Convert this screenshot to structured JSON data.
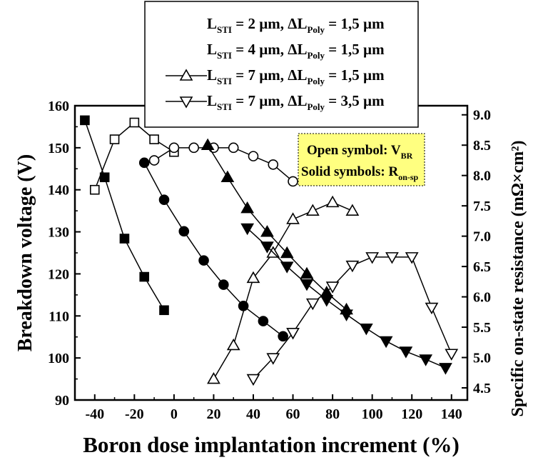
{
  "chart_data": {
    "type": "line",
    "title": "",
    "xlabel": "Boron dose implantation increment (%)",
    "ylabel_left": "Breakdown voltage (V)",
    "ylabel_right": "Specific on-state resistance (mΩ×cm²)",
    "xlim": [
      -50,
      148
    ],
    "ylim_left": [
      90,
      160
    ],
    "ylim_right": [
      4.3,
      9.15
    ],
    "x_ticks": [
      -40,
      -20,
      0,
      20,
      40,
      60,
      80,
      100,
      120,
      140
    ],
    "y_left_ticks": [
      90,
      100,
      110,
      120,
      130,
      140,
      150,
      160
    ],
    "y_right_ticks": [
      4.5,
      5.0,
      5.5,
      6.0,
      6.5,
      7.0,
      7.5,
      8.0,
      8.5,
      9.0
    ],
    "grid": false,
    "legend_placement": "top-center",
    "legend": [
      {
        "label": "L_STI = 2 µm, ΔL_Poly = 1,5 µm",
        "marker": "square",
        "main": "L",
        "sub1": "STI",
        "mid": " = 2 µm, ΔL",
        "sub2": "Poly",
        "tail": " = 1,5 µm"
      },
      {
        "label": "L_STI = 4 µm, ΔL_Poly = 1,5 µm",
        "marker": "circle",
        "main": "L",
        "sub1": "STI",
        "mid": " = 4 µm, ΔL",
        "sub2": "Poly",
        "tail": " = 1,5 µm"
      },
      {
        "label": "L_STI = 7 µm, ΔL_Poly = 1,5 µm",
        "marker": "triangle-up",
        "main": "L",
        "sub1": "STI",
        "mid": " = 7 µm, ΔL",
        "sub2": "Poly",
        "tail": " = 1,5 µm"
      },
      {
        "label": "L_STI = 7 µm, ΔL_Poly = 3,5 µm",
        "marker": "triangle-down",
        "main": "L",
        "sub1": "STI",
        "mid": " = 7 µm, ΔL",
        "sub2": "Poly",
        "tail": " = 3,5 µm"
      }
    ],
    "annotation": {
      "line1_main": "Open symbol: V",
      "line1_sub": "BR",
      "line2_main": "Solid symbols: R",
      "line2_sub": "on-sp",
      "background": "#ffff80"
    },
    "series": [
      {
        "name": "L_STI = 2 µm, ΔL_Poly = 1,5 µm — V_BR",
        "marker": "square",
        "filled": false,
        "axis": "left",
        "x": [
          -40,
          -30,
          -20,
          -10,
          0
        ],
        "y": [
          140,
          152,
          156,
          152,
          149
        ]
      },
      {
        "name": "L_STI = 4 µm, ΔL_Poly = 1,5 µm — V_BR",
        "marker": "circle",
        "filled": false,
        "axis": "left",
        "x": [
          -10,
          0,
          10,
          20,
          30,
          40,
          50,
          60
        ],
        "y": [
          147,
          150,
          150,
          150,
          150,
          148,
          146,
          142
        ]
      },
      {
        "name": "L_STI = 7 µm, ΔL_Poly = 1,5 µm — V_BR",
        "marker": "triangle-up",
        "filled": false,
        "axis": "left",
        "x": [
          20,
          30,
          40,
          50,
          60,
          70,
          80,
          90
        ],
        "y": [
          95,
          103,
          119,
          125,
          133,
          135,
          137,
          135
        ]
      },
      {
        "name": "L_STI = 7 µm, ΔL_Poly = 3,5 µm — V_BR",
        "marker": "triangle-down",
        "filled": false,
        "axis": "left",
        "x": [
          40,
          50,
          60,
          70,
          80,
          90,
          100,
          110,
          120,
          130,
          140
        ],
        "y": [
          95,
          100,
          106,
          113,
          117,
          122,
          124,
          124,
          124,
          112,
          101
        ]
      },
      {
        "name": "L_STI = 2 µm, ΔL_Poly = 1,5 µm — R_on-sp",
        "marker": "square",
        "filled": true,
        "axis": "right",
        "x": [
          -45,
          -35,
          -25,
          -15,
          -5
        ],
        "y": [
          8.91,
          7.97,
          6.96,
          6.33,
          5.78
        ]
      },
      {
        "name": "L_STI = 4 µm, ΔL_Poly = 1,5 µm — R_on-sp",
        "marker": "circle",
        "filled": true,
        "axis": "right",
        "x": [
          -15,
          -5,
          5,
          15,
          25,
          35,
          45,
          55
        ],
        "y": [
          8.21,
          7.6,
          7.08,
          6.6,
          6.2,
          5.85,
          5.6,
          5.35
        ]
      },
      {
        "name": "L_STI = 7 µm, ΔL_Poly = 1,5 µm — R_on-sp",
        "marker": "triangle-up",
        "filled": true,
        "axis": "right",
        "x": [
          17,
          27,
          37,
          47,
          57,
          67,
          77,
          87
        ],
        "y": [
          8.5,
          7.97,
          7.46,
          7.07,
          6.72,
          6.38,
          6.07,
          5.79
        ]
      },
      {
        "name": "L_STI = 7 µm, ΔL_Poly = 3,5 µm — R_on-sp",
        "marker": "triangle-down",
        "filled": true,
        "axis": "right",
        "x": [
          37,
          47,
          57,
          67,
          77,
          87,
          97,
          107,
          117,
          127,
          137
        ],
        "y": [
          7.13,
          6.83,
          6.5,
          6.21,
          5.95,
          5.71,
          5.48,
          5.27,
          5.1,
          4.97,
          4.83
        ]
      }
    ]
  }
}
